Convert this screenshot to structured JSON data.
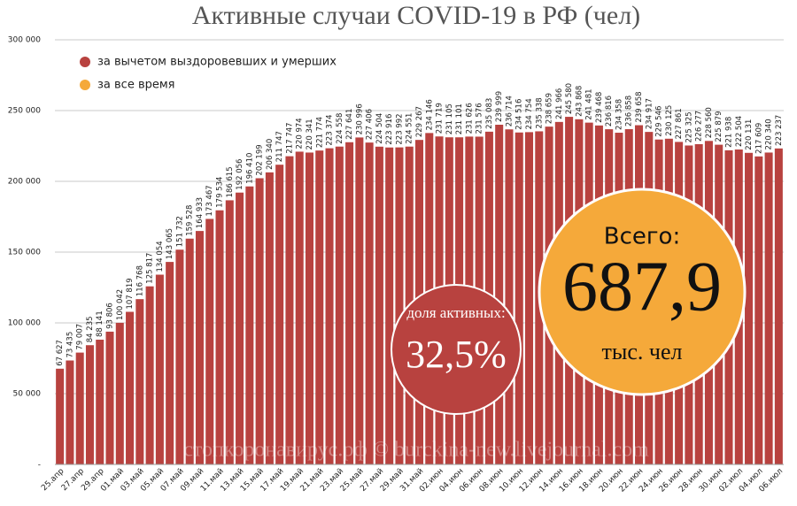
{
  "chart_data": {
    "type": "bar",
    "title": "Активные случаи COVID-19 в РФ (чел)",
    "categories": [
      "25.апр",
      null,
      "27.апр",
      null,
      "29.апр",
      null,
      "01.май",
      null,
      "03.май",
      null,
      "05.май",
      null,
      "07.май",
      null,
      "09.май",
      null,
      "11.май",
      null,
      "13.май",
      null,
      "15.май",
      null,
      "17.май",
      null,
      "19.май",
      null,
      "21.май",
      null,
      "23.май",
      null,
      "25.май",
      null,
      "27.май",
      null,
      "29.май",
      null,
      "31.май",
      null,
      "02.июн",
      null,
      "04.июн",
      null,
      "06.июн",
      null,
      "08.июн",
      null,
      "10.июн",
      null,
      "12.июн",
      null,
      "14.июн",
      null,
      "16.июн",
      null,
      "18.июн",
      null,
      "20.июн",
      null,
      "22.июн",
      null,
      "24.июн",
      null,
      "26.июн",
      null,
      "28.июн",
      null,
      "30.июн",
      null,
      "02.июл",
      null,
      "04.июл",
      null,
      "06.июл"
    ],
    "series": [
      {
        "name": "за вычетом выздоровевших и умерших",
        "color": "#b8423f",
        "values": [
          67627,
          73435,
          79007,
          84235,
          88141,
          93806,
          100042,
          107819,
          116768,
          125817,
          134054,
          143065,
          151732,
          159528,
          164933,
          173467,
          179534,
          186615,
          192056,
          196410,
          202199,
          206340,
          211747,
          217747,
          220974,
          220341,
          221774,
          223374,
          224558,
          227641,
          230996,
          227406,
          224504,
          223916,
          223992,
          224551,
          229267,
          234146,
          231719,
          231105,
          231101,
          231626,
          231576,
          235083,
          239999,
          236714,
          234516,
          234754,
          235338,
          238659,
          241966,
          245580,
          243868,
          241481,
          239468,
          236816,
          234358,
          236858,
          239658,
          234917,
          229546,
          230125,
          227861,
          225325,
          226277,
          228560,
          225879,
          221938,
          222504,
          220131,
          217609,
          220340,
          223237
        ],
        "value_labels": [
          "67 627",
          "73 435",
          "79 007",
          "84 235",
          "88 141",
          "93 806",
          "100 042",
          "107 819",
          "116 768",
          "125 817",
          "134 054",
          "143 065",
          "151 732",
          "159 528",
          "164 933",
          "173 467",
          "179 534",
          "186 615",
          "192 056",
          "196 410",
          "202 199",
          "206 340",
          "211 747",
          "217 747",
          "220 974",
          "220 341",
          "221 774",
          "223 374",
          "224 558",
          "227 641",
          "230 996",
          "227 406",
          "224 504",
          "223 916",
          "223 992",
          "224 551",
          "229 267",
          "234 146",
          "231 719",
          "231 105",
          "231 101",
          "231 626",
          "231 576",
          "235 083",
          "239 999",
          "236 714",
          "234 516",
          "234 754",
          "235 338",
          "238 659",
          "241 966",
          "245 580",
          "243 868",
          "241 481",
          "239 468",
          "236 816",
          "234 358",
          "236 858",
          "239 658",
          "234 917",
          "229 546",
          "230 125",
          "227 861",
          "225 325",
          "226 277",
          "228 560",
          "225 879",
          "221 938",
          "222 504",
          "220 131",
          "217 609",
          "220 340",
          "223 237"
        ]
      }
    ],
    "legend_items": [
      {
        "name": "за все время",
        "color": "#f5a93a"
      }
    ],
    "ylim": [
      0,
      300000
    ],
    "yticks": [
      {
        "value": 0,
        "label": "-"
      },
      {
        "value": 50000,
        "label": "50 000"
      },
      {
        "value": 100000,
        "label": "100 000"
      },
      {
        "value": 150000,
        "label": "150 000"
      },
      {
        "value": 200000,
        "label": "200 000"
      },
      {
        "value": 250000,
        "label": "250 000"
      },
      {
        "value": 300000,
        "label": "300 000"
      }
    ],
    "grid": true,
    "annotations": {
      "share_label": "доля активных:",
      "share_value": "32,5%",
      "total_label": "Всего:",
      "total_value": "687,9",
      "total_unit": "тыс. чел",
      "watermark": "стопкоронавирус.рф © burckina-new.livejournal.com"
    }
  }
}
